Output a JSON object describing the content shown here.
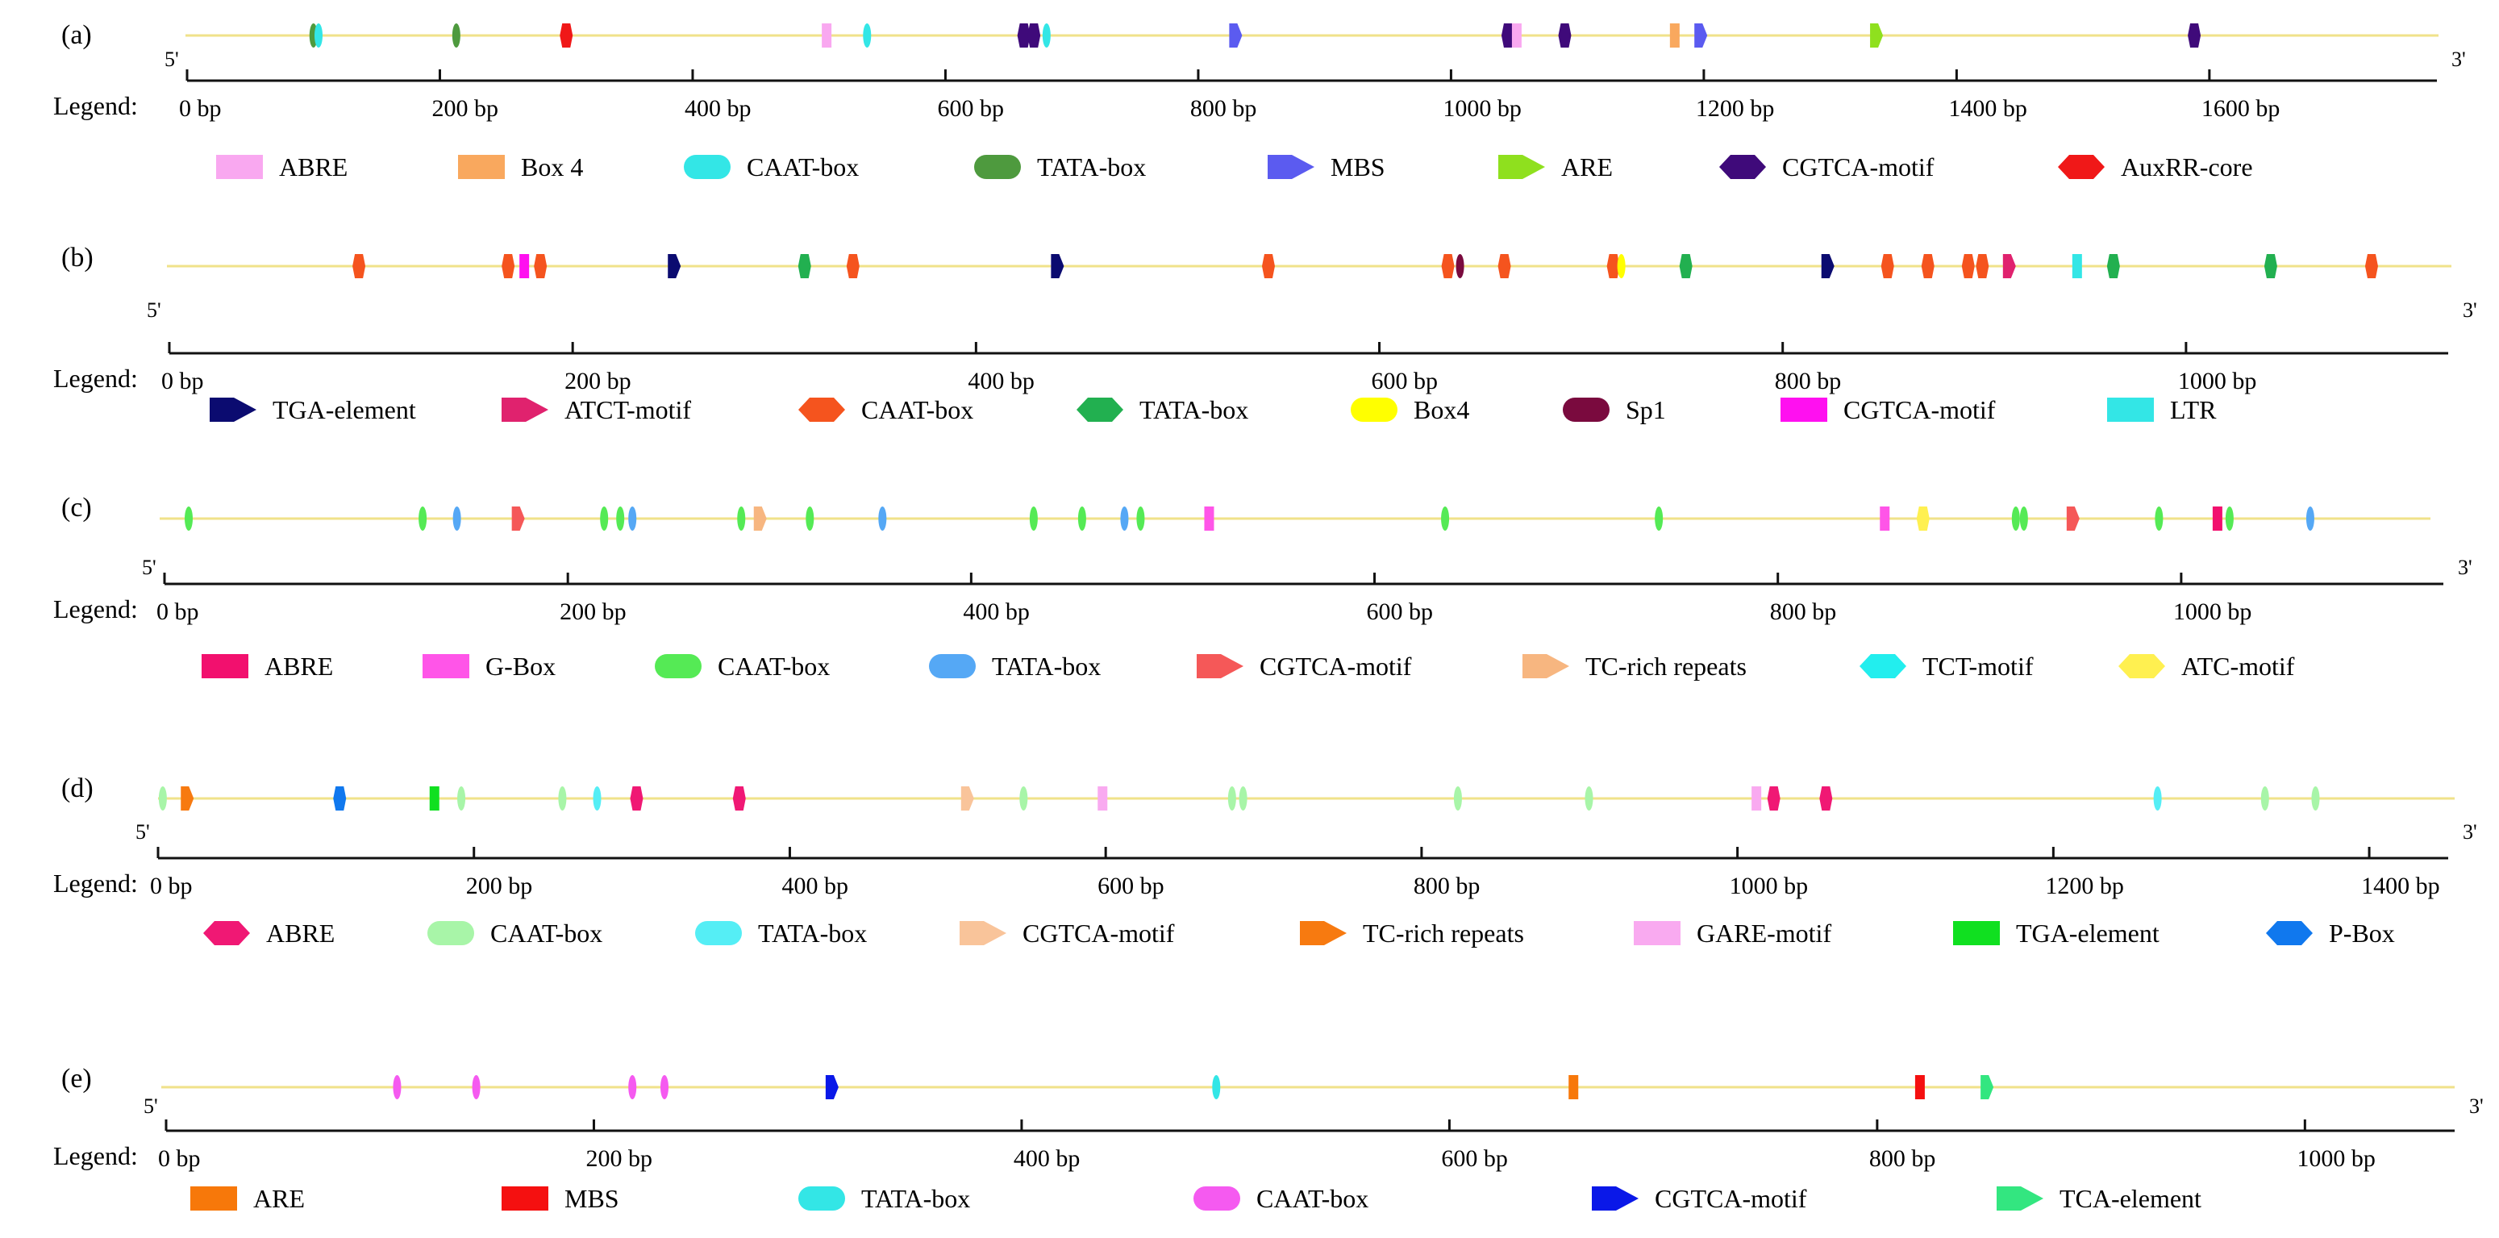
{
  "axis_label": "Legend:",
  "five_prime": "5'",
  "three_prime": "3'",
  "unit": "bp",
  "panels": [
    {
      "label": "(a)",
      "length": 1780,
      "ticks": [
        0,
        200,
        400,
        600,
        800,
        1000,
        1200,
        1400,
        1600
      ],
      "legend": [
        {
          "name": "ABRE",
          "color": "#F9A8F0",
          "shape": "rect"
        },
        {
          "name": "Box 4",
          "color": "#F9A85E",
          "shape": "rect"
        },
        {
          "name": "CAAT-box",
          "color": "#33E6E6",
          "shape": "round"
        },
        {
          "name": "TATA-box",
          "color": "#4E9A3E",
          "shape": "round"
        },
        {
          "name": "MBS",
          "color": "#5B5BF0",
          "shape": "arrow"
        },
        {
          "name": "ARE",
          "color": "#8FE01E",
          "shape": "arrow"
        },
        {
          "name": "CGTCA-motif",
          "color": "#3F0A7A",
          "shape": "hex"
        },
        {
          "name": "AuxRR-core",
          "color": "#F01818",
          "shape": "hex"
        }
      ],
      "markers": [
        {
          "pos": 100,
          "type": "TATA-box"
        },
        {
          "pos": 104,
          "type": "CAAT-box"
        },
        {
          "pos": 213,
          "type": "TATA-box"
        },
        {
          "pos": 300,
          "type": "AuxRR-core"
        },
        {
          "pos": 506,
          "type": "ABRE"
        },
        {
          "pos": 538,
          "type": "CAAT-box"
        },
        {
          "pos": 662,
          "type": "CGTCA-motif"
        },
        {
          "pos": 670,
          "type": "CGTCA-motif"
        },
        {
          "pos": 680,
          "type": "CAAT-box"
        },
        {
          "pos": 829,
          "type": "MBS"
        },
        {
          "pos": 1045,
          "type": "CGTCA-motif"
        },
        {
          "pos": 1052,
          "type": "ABRE"
        },
        {
          "pos": 1090,
          "type": "CGTCA-motif"
        },
        {
          "pos": 1177,
          "type": "Box 4"
        },
        {
          "pos": 1197,
          "type": "MBS"
        },
        {
          "pos": 1336,
          "type": "ARE"
        },
        {
          "pos": 1588,
          "type": "CGTCA-motif"
        }
      ]
    },
    {
      "label": "(b)",
      "length": 1130,
      "ticks": [
        0,
        200,
        400,
        600,
        800,
        1000
      ],
      "legend": [
        {
          "name": "TGA-element",
          "color": "#0B0B70",
          "shape": "arrow"
        },
        {
          "name": "ATCT-motif",
          "color": "#E0226E",
          "shape": "arrow"
        },
        {
          "name": "CAAT-box",
          "color": "#F5541E",
          "shape": "hex"
        },
        {
          "name": "TATA-box",
          "color": "#22B050",
          "shape": "hex"
        },
        {
          "name": "Box4",
          "color": "#FFFF00",
          "shape": "round"
        },
        {
          "name": "Sp1",
          "color": "#7A0A3E",
          "shape": "round"
        },
        {
          "name": "CGTCA-motif",
          "color": "#FF10F0",
          "shape": "rect"
        },
        {
          "name": "LTR",
          "color": "#33E6E6",
          "shape": "rect"
        }
      ],
      "markers": [
        {
          "pos": 94,
          "type": "CAAT-box"
        },
        {
          "pos": 168,
          "type": "CAAT-box"
        },
        {
          "pos": 176,
          "type": "CGTCA-motif"
        },
        {
          "pos": 184,
          "type": "CAAT-box"
        },
        {
          "pos": 250,
          "type": "TGA-element"
        },
        {
          "pos": 315,
          "type": "TATA-box"
        },
        {
          "pos": 339,
          "type": "CAAT-box"
        },
        {
          "pos": 440,
          "type": "TGA-element"
        },
        {
          "pos": 545,
          "type": "CAAT-box"
        },
        {
          "pos": 634,
          "type": "CAAT-box"
        },
        {
          "pos": 640,
          "type": "Sp1"
        },
        {
          "pos": 662,
          "type": "CAAT-box"
        },
        {
          "pos": 716,
          "type": "CAAT-box"
        },
        {
          "pos": 720,
          "type": "Box4"
        },
        {
          "pos": 752,
          "type": "TATA-box"
        },
        {
          "pos": 822,
          "type": "TGA-element"
        },
        {
          "pos": 852,
          "type": "CAAT-box"
        },
        {
          "pos": 872,
          "type": "CAAT-box"
        },
        {
          "pos": 892,
          "type": "CAAT-box"
        },
        {
          "pos": 899,
          "type": "CAAT-box"
        },
        {
          "pos": 912,
          "type": "ATCT-motif"
        },
        {
          "pos": 946,
          "type": "LTR"
        },
        {
          "pos": 964,
          "type": "TATA-box"
        },
        {
          "pos": 1042,
          "type": "TATA-box"
        },
        {
          "pos": 1092,
          "type": "CAAT-box"
        }
      ]
    },
    {
      "label": "(c)",
      "length": 1130,
      "ticks": [
        0,
        200,
        400,
        600,
        800,
        1000
      ],
      "legend": [
        {
          "name": "ABRE",
          "color": "#F2106E",
          "shape": "rect"
        },
        {
          "name": "G-Box",
          "color": "#FF55E8",
          "shape": "rect"
        },
        {
          "name": "CAAT-box",
          "color": "#55EA55",
          "shape": "round"
        },
        {
          "name": "TATA-box",
          "color": "#55A8F5",
          "shape": "round"
        },
        {
          "name": "CGTCA-motif",
          "color": "#F55858",
          "shape": "arrow"
        },
        {
          "name": "TC-rich repeats",
          "color": "#F7B680",
          "shape": "arrow"
        },
        {
          "name": "TCT-motif",
          "color": "#22EEEE",
          "shape": "hex"
        },
        {
          "name": "ATC-motif",
          "color": "#FFF050",
          "shape": "hex"
        }
      ],
      "markers": [
        {
          "pos": 12,
          "type": "CAAT-box"
        },
        {
          "pos": 128,
          "type": "CAAT-box"
        },
        {
          "pos": 145,
          "type": "TATA-box"
        },
        {
          "pos": 175,
          "type": "CGTCA-motif"
        },
        {
          "pos": 218,
          "type": "CAAT-box"
        },
        {
          "pos": 226,
          "type": "CAAT-box"
        },
        {
          "pos": 232,
          "type": "TATA-box"
        },
        {
          "pos": 286,
          "type": "CAAT-box"
        },
        {
          "pos": 295,
          "type": "TC-rich repeats"
        },
        {
          "pos": 320,
          "type": "CAAT-box"
        },
        {
          "pos": 356,
          "type": "TATA-box"
        },
        {
          "pos": 431,
          "type": "CAAT-box"
        },
        {
          "pos": 455,
          "type": "CAAT-box"
        },
        {
          "pos": 476,
          "type": "TATA-box"
        },
        {
          "pos": 484,
          "type": "CAAT-box"
        },
        {
          "pos": 518,
          "type": "G-Box"
        },
        {
          "pos": 635,
          "type": "CAAT-box"
        },
        {
          "pos": 741,
          "type": "CAAT-box"
        },
        {
          "pos": 853,
          "type": "G-Box"
        },
        {
          "pos": 872,
          "type": "ATC-motif"
        },
        {
          "pos": 918,
          "type": "CAAT-box"
        },
        {
          "pos": 922,
          "type": "CAAT-box"
        },
        {
          "pos": 946,
          "type": "CGTCA-motif"
        },
        {
          "pos": 989,
          "type": "CAAT-box"
        },
        {
          "pos": 1018,
          "type": "ABRE"
        },
        {
          "pos": 1024,
          "type": "CAAT-box"
        },
        {
          "pos": 1064,
          "type": "TATA-box"
        }
      ]
    },
    {
      "label": "(d)",
      "length": 1450,
      "ticks": [
        0,
        200,
        400,
        600,
        800,
        1000,
        1200,
        1400
      ],
      "legend": [
        {
          "name": "ABRE",
          "color": "#F01874",
          "shape": "hex"
        },
        {
          "name": "CAAT-box",
          "color": "#A8F5A8",
          "shape": "round"
        },
        {
          "name": "TATA-box",
          "color": "#55EEF5",
          "shape": "round"
        },
        {
          "name": "CGTCA-motif",
          "color": "#F9C49A",
          "shape": "arrow"
        },
        {
          "name": "TC-rich repeats",
          "color": "#F77A10",
          "shape": "arrow"
        },
        {
          "name": "GARE-motif",
          "color": "#F9AAF0",
          "shape": "rect"
        },
        {
          "name": "TGA-element",
          "color": "#10E020",
          "shape": "rect"
        },
        {
          "name": "P-Box",
          "color": "#1078EE",
          "shape": "hex"
        }
      ],
      "markers": [
        {
          "pos": 3,
          "type": "CAAT-box"
        },
        {
          "pos": 18,
          "type": "TC-rich repeats"
        },
        {
          "pos": 115,
          "type": "P-Box"
        },
        {
          "pos": 175,
          "type": "TGA-element"
        },
        {
          "pos": 192,
          "type": "CAAT-box"
        },
        {
          "pos": 256,
          "type": "CAAT-box"
        },
        {
          "pos": 278,
          "type": "TATA-box"
        },
        {
          "pos": 303,
          "type": "ABRE"
        },
        {
          "pos": 368,
          "type": "ABRE"
        },
        {
          "pos": 512,
          "type": "CGTCA-motif"
        },
        {
          "pos": 548,
          "type": "CAAT-box"
        },
        {
          "pos": 598,
          "type": "GARE-motif"
        },
        {
          "pos": 680,
          "type": "CAAT-box"
        },
        {
          "pos": 687,
          "type": "CAAT-box"
        },
        {
          "pos": 823,
          "type": "CAAT-box"
        },
        {
          "pos": 906,
          "type": "CAAT-box"
        },
        {
          "pos": 1012,
          "type": "GARE-motif"
        },
        {
          "pos": 1023,
          "type": "ABRE"
        },
        {
          "pos": 1056,
          "type": "ABRE"
        },
        {
          "pos": 1266,
          "type": "TATA-box"
        },
        {
          "pos": 1334,
          "type": "CAAT-box"
        },
        {
          "pos": 1366,
          "type": "CAAT-box"
        }
      ]
    },
    {
      "label": "(e)",
      "length": 1070,
      "ticks": [
        0,
        200,
        400,
        600,
        800,
        1000
      ],
      "legend": [
        {
          "name": "ARE",
          "color": "#F7780A",
          "shape": "rect"
        },
        {
          "name": "MBS",
          "color": "#F51010",
          "shape": "rect"
        },
        {
          "name": "TATA-box",
          "color": "#33E6E6",
          "shape": "round"
        },
        {
          "name": "CAAT-box",
          "color": "#F55AF0",
          "shape": "round"
        },
        {
          "name": "CGTCA-motif",
          "color": "#0A18E8",
          "shape": "arrow"
        },
        {
          "name": "TCA-element",
          "color": "#33E680",
          "shape": "arrow"
        }
      ],
      "markers": [
        {
          "pos": 108,
          "type": "CAAT-box"
        },
        {
          "pos": 145,
          "type": "CAAT-box"
        },
        {
          "pos": 218,
          "type": "CAAT-box"
        },
        {
          "pos": 233,
          "type": "CAAT-box"
        },
        {
          "pos": 311,
          "type": "CGTCA-motif"
        },
        {
          "pos": 491,
          "type": "TATA-box"
        },
        {
          "pos": 658,
          "type": "ARE"
        },
        {
          "pos": 820,
          "type": "MBS"
        },
        {
          "pos": 851,
          "type": "TCA-element"
        }
      ]
    }
  ]
}
